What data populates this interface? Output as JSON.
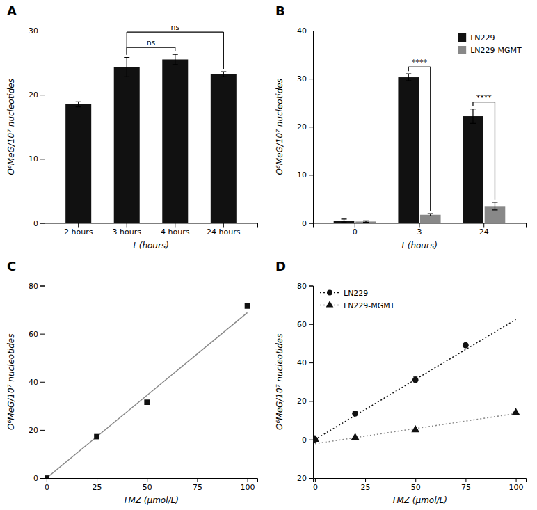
{
  "chart_data": [
    {
      "type": "bar",
      "title": "A",
      "categories": [
        "2 hours",
        "3 hours",
        "4 hours",
        "24 hours"
      ],
      "values": [
        18.5,
        24.3,
        25.5,
        23.2
      ],
      "errors": [
        0.4,
        1.5,
        0.8,
        0.4
      ],
      "color": "#111111",
      "xlabel": "t (hours)",
      "ylabel": "O⁶MeG/10⁷ nucleotides",
      "ylim": [
        0,
        30
      ],
      "yticks": [
        0,
        10,
        20,
        30
      ],
      "grid": false,
      "annotations": [
        {
          "text": "ns",
          "between": [
            "3 hours",
            "4 hours"
          ]
        },
        {
          "text": "ns",
          "between": [
            "3 hours",
            "24 hours"
          ]
        }
      ]
    },
    {
      "type": "bar",
      "title": "B",
      "categories": [
        "0",
        "3",
        "24"
      ],
      "series": [
        {
          "name": "LN229",
          "color": "#111111",
          "values": [
            0.5,
            30.3,
            22.2
          ],
          "errors": [
            0.3,
            0.7,
            1.5
          ]
        },
        {
          "name": "LN229-MGMT",
          "color": "#888888",
          "values": [
            0.3,
            1.7,
            3.5
          ],
          "errors": [
            0.15,
            0.25,
            0.8
          ]
        }
      ],
      "xlabel": "t (hours)",
      "ylabel": "O⁶MeG/10⁷ nucleotides",
      "ylim": [
        0,
        40
      ],
      "yticks": [
        0,
        10,
        20,
        30,
        40
      ],
      "grid": false,
      "legend": "upper right",
      "annotations": [
        {
          "text": "****",
          "category": "3"
        },
        {
          "text": "****",
          "category": "24"
        }
      ]
    },
    {
      "type": "scatter",
      "title": "C",
      "series": [
        {
          "type": "line",
          "color": "#888888",
          "line_style": "solid",
          "x": [
            0,
            100
          ],
          "values": [
            0,
            68.73
          ]
        },
        {
          "type": "scatter",
          "color": "#111111",
          "marker": "square",
          "x": [
            0,
            25,
            50,
            100
          ],
          "values": [
            0,
            17.2,
            31.5,
            71.5
          ]
        }
      ],
      "xlabel": "TMZ (μmol/L)",
      "ylabel": "O⁶MeG/10⁷ nucleotides",
      "xlim": [
        -1,
        105
      ],
      "xticks": [
        0,
        25,
        50,
        75,
        100
      ],
      "ylim": [
        0,
        80
      ],
      "yticks": [
        0,
        20,
        40,
        60,
        80
      ],
      "grid": false
    },
    {
      "type": "scatter",
      "title": "D",
      "series": [
        {
          "name": "LN229",
          "type": "scatter",
          "color": "#111111",
          "marker": "circle",
          "x": [
            0,
            20,
            50,
            75
          ],
          "values": [
            0,
            13.5,
            31.0,
            49.0
          ],
          "errors": [
            0,
            0,
            1.5,
            0
          ]
        },
        {
          "name": "LN229-MGMT",
          "type": "scatter",
          "color": "#111111",
          "marker": "triangle",
          "x": [
            0,
            20,
            50,
            100
          ],
          "values": [
            0,
            1.0,
            5.0,
            14.0
          ],
          "errors": [
            0,
            0,
            0,
            0
          ]
        },
        {
          "type": "line",
          "color": "#111111",
          "line_style": "dotted",
          "x": [
            0,
            100
          ],
          "values": [
            0,
            62.39
          ]
        },
        {
          "type": "line",
          "color": "#888888",
          "line_style": "dotted",
          "x": [
            0,
            100
          ],
          "values": [
            -2.151,
            13.539
          ]
        }
      ],
      "xlabel": "TMZ (μmol/L)",
      "ylabel": "O⁶MeG/10⁷ nucleotides",
      "xlim": [
        -1,
        105
      ],
      "xticks": [
        0,
        25,
        50,
        75,
        100
      ],
      "ylim": [
        -20,
        80
      ],
      "yticks": [
        -20,
        0,
        20,
        40,
        60,
        80
      ],
      "grid": false,
      "legend": "upper left"
    }
  ]
}
